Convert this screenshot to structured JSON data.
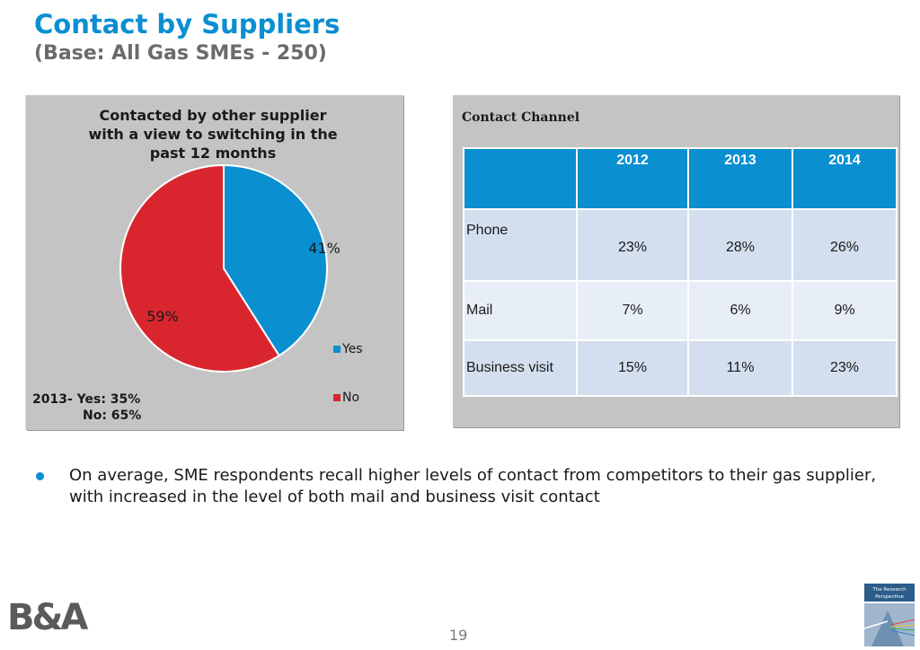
{
  "header": {
    "title": "Contact by Suppliers",
    "subtitle": "(Base: All Gas SMEs - 250)"
  },
  "chart_data": {
    "type": "pie",
    "title": "Contacted by other supplier with a view to switching in the past 12 months",
    "categories": [
      "Yes",
      "No"
    ],
    "values": [
      41,
      59
    ],
    "data_labels": [
      "41%",
      "59%"
    ],
    "colors": [
      "#0a8fd0",
      "#d9262e"
    ],
    "legend": [
      "Yes",
      "No"
    ],
    "legend_position": "bottom-right"
  },
  "chart_note": {
    "line1": "2013- Yes: 35%",
    "line2": "No:  65%"
  },
  "table": {
    "title": "Contact Channel",
    "columns": [
      "",
      "2012",
      "2013",
      "2014"
    ],
    "rows": [
      {
        "label": "Phone",
        "values": [
          "23%",
          "28%",
          "26%"
        ]
      },
      {
        "label": "Mail",
        "values": [
          "7%",
          "6%",
          "9%"
        ]
      },
      {
        "label": "Business visit",
        "values": [
          "15%",
          "11%",
          "23%"
        ]
      }
    ]
  },
  "bullet": {
    "text": "On average, SME respondents recall higher levels of contact from competitors to their gas supplier, with increased in the level of both mail and business visit contact"
  },
  "footer": {
    "page_number": "19",
    "logo_left": "B&A",
    "logo_right_text": "The Research Perspective"
  },
  "colors": {
    "accent": "#0a8fd0",
    "no_red": "#d9262e",
    "panel": "#c4c4c4"
  }
}
